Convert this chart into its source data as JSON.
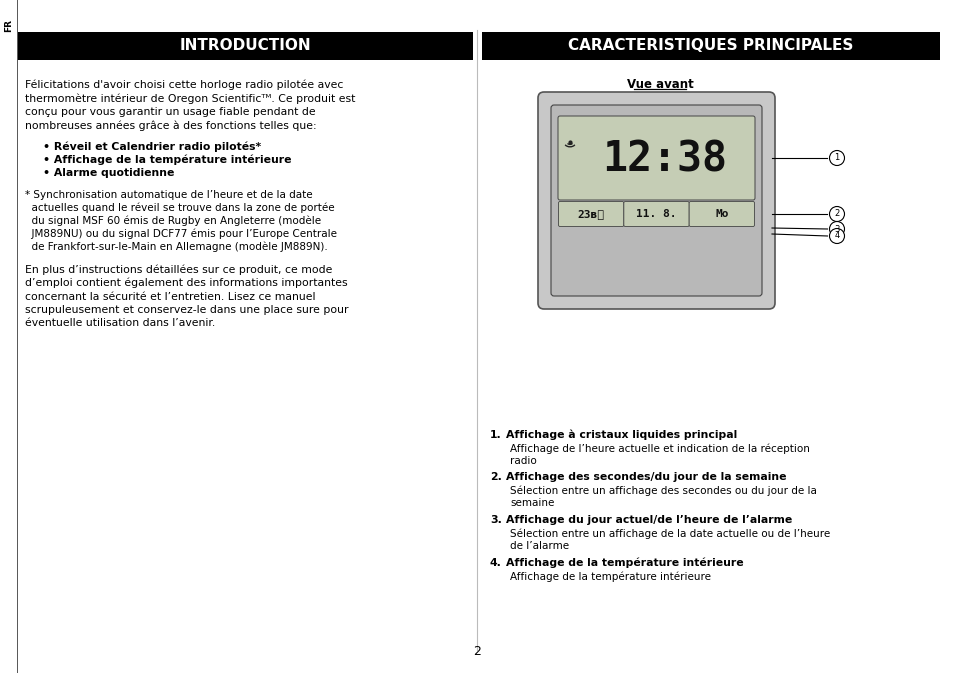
{
  "bg_color": "#ffffff",
  "header_bg": "#000000",
  "header_text_color": "#ffffff",
  "fr_label": "FR",
  "intro_title": "INTRODUCTION",
  "carac_title": "CARACTERISTIQUES PRINCIPALES",
  "vue_avant_label": "Vue avant",
  "para1_lines": [
    "Félicitations d'avoir choisi cette horloge radio pilotée avec",
    "thermomètre intérieur de Oregon Scientificᵀᴹ. Ce produit est",
    "conçu pour vous garantir un usage fiable pendant de",
    "nombreuses années grâce à des fonctions telles que:"
  ],
  "bullet1": "• Réveil et Calendrier radio pilotés*",
  "bullet2": "• Affichage de la température intérieure",
  "bullet3": "• Alarme quotidienne",
  "footnote_lines": [
    "* Synchronisation automatique de l’heure et de la date",
    "  actuelles quand le réveil se trouve dans la zone de portée",
    "  du signal MSF 60 émis de Rugby en Angleterre (modèle",
    "  JM889NU) ou du signal DCF77 émis pour l’Europe Centrale",
    "  de Frankfort-sur-le-Main en Allemagne (modèle JM889N)."
  ],
  "para2_lines": [
    "En plus d’instructions détaillées sur ce produit, ce mode",
    "d’emploi contient également des informations importantes",
    "concernant la sécurité et l’entretien. Lisez ce manuel",
    "scrupuleusement et conservez-le dans une place sure pour",
    "éventuelle utilisation dans l’avenir."
  ],
  "item1_bold": "Affichage à cristaux liquides principal",
  "item1_desc_lines": [
    "Affichage de l’heure actuelle et indication de la réception",
    "radio"
  ],
  "item2_bold": "Affichage des secondes/du jour de la semaine",
  "item2_desc_lines": [
    "Sélection entre un affichage des secondes ou du jour de la",
    "semaine"
  ],
  "item3_bold": "Affichage du jour actuel/de l’heure de l’alarme",
  "item3_desc_lines": [
    "Sélection entre un affichage de la date actuelle ou de l’heure",
    "de l’alarme"
  ],
  "item4_bold": "Affichage de la température intérieure",
  "item4_desc_lines": [
    "Affichage de la température intérieure"
  ],
  "page_number": "2",
  "clock_sub_texts": [
    "23ʙᴜ",
    "11. 8.",
    "Mo"
  ],
  "clock_time": "12:38"
}
